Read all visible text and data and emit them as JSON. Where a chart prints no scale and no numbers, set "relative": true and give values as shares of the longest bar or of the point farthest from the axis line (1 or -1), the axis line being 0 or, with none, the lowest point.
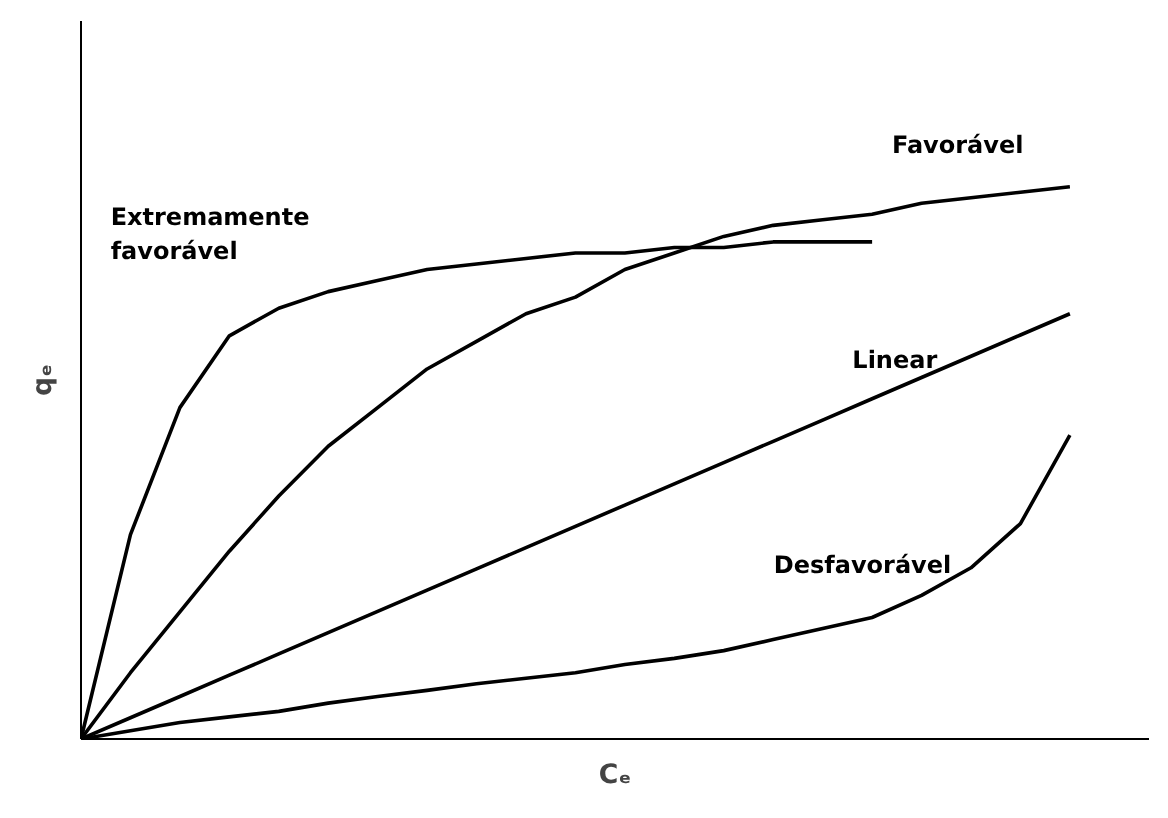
{
  "chart_data": {
    "type": "line",
    "relative": true,
    "xlabel": "Cₑ",
    "ylabel": "qₑ",
    "grid": false,
    "marker": "none",
    "categories": [
      null,
      null,
      null,
      null,
      null,
      null,
      null,
      null,
      null,
      null,
      null,
      null,
      null,
      null,
      null,
      null,
      null,
      null,
      null,
      null,
      null
    ],
    "series": [
      {
        "name": "Extremamente favorável",
        "color": "#000000",
        "values": [
          0,
          0.37,
          0.6,
          0.73,
          0.78,
          0.81,
          0.83,
          0.85,
          0.86,
          0.87,
          0.88,
          0.88,
          0.89,
          0.89,
          0.9,
          0.9,
          0.9,
          null,
          null,
          null,
          null
        ]
      },
      {
        "name": "Favorável",
        "color": "#000000",
        "values": [
          0,
          0.12,
          0.23,
          0.34,
          0.44,
          0.53,
          0.6,
          0.67,
          0.72,
          0.77,
          0.8,
          0.85,
          0.88,
          0.91,
          0.93,
          0.94,
          0.95,
          0.97,
          0.98,
          0.99,
          1
        ]
      },
      {
        "name": "Linear",
        "color": "#000000",
        "values": [
          0,
          0.0385,
          0.077,
          0.1155,
          0.154,
          0.1925,
          0.231,
          0.2695,
          0.308,
          0.3465,
          0.385,
          0.4235,
          0.462,
          0.5005,
          0.539,
          0.5775,
          0.616,
          0.6545,
          0.693,
          0.7315,
          0.77
        ]
      },
      {
        "name": "Desfavorável",
        "color": "#000000",
        "values": [
          0,
          0.015,
          0.03,
          0.04,
          0.05,
          0.065,
          0.077,
          0.088,
          0.1,
          0.11,
          0.12,
          0.135,
          0.146,
          0.16,
          0.18,
          0.2,
          0.22,
          0.26,
          0.31,
          0.39,
          0.55
        ]
      }
    ]
  }
}
